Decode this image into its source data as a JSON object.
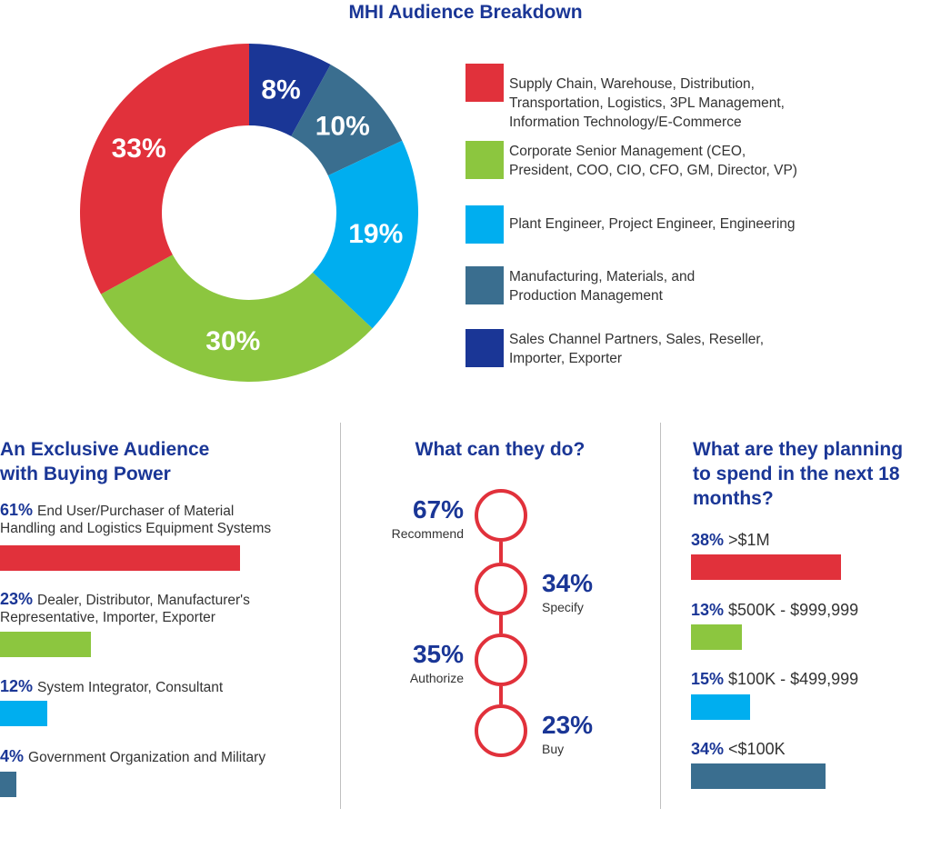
{
  "title": "MHI Audience Breakdown",
  "chart_data": [
    {
      "type": "pie",
      "title": "MHI Audience Breakdown",
      "categories": [
        "Supply Chain, Warehouse, Distribution, Transportation, Logistics, 3PL Management, Information Technology/E-Commerce",
        "Corporate Senior Management (CEO, President, COO, CIO, CFO, GM, Director, VP)",
        "Plant Engineer, Project Engineer, Engineering",
        "Manufacturing, Materials, and Production Management",
        "Sales Channel Partners, Sales, Reseller, Importer, Exporter"
      ],
      "values": [
        33,
        30,
        19,
        10,
        8
      ],
      "value_labels": [
        "33%",
        "30%",
        "19%",
        "10%",
        "8%"
      ],
      "colors": [
        "#e1313b",
        "#8cc63f",
        "#00aeef",
        "#3a6e8f",
        "#1a3696"
      ],
      "legend": [
        {
          "text": "Supply Chain, Warehouse, Distribution,\nTransportation, Logistics, 3PL Management,\nInformation Technology/E-Commerce",
          "color": "#e1313b"
        },
        {
          "text": "Corporate Senior Management (CEO,\nPresident, COO, CIO, CFO, GM, Director, VP)",
          "color": "#8cc63f"
        },
        {
          "text": "Plant Engineer, Project Engineer, Engineering",
          "color": "#00aeef"
        },
        {
          "text": "Manufacturing, Materials, and\nProduction Management",
          "color": "#3a6e8f"
        },
        {
          "text": "Sales Channel Partners, Sales, Reseller,\nImporter, Exporter",
          "color": "#1a3696"
        }
      ],
      "legend_position": "right"
    },
    {
      "type": "bar",
      "title": "An Exclusive Audience\nwith Buying Power",
      "categories": [
        "End User/Purchaser of Material Handling and Logistics Equipment Systems",
        "Dealer, Distributor, Manufacturer's Representative, Importer, Exporter",
        "System Integrator, Consultant",
        "Government Organization and Military"
      ],
      "values": [
        61,
        23,
        12,
        4
      ],
      "colors": [
        "#e1313b",
        "#8cc63f",
        "#00aeef",
        "#3a6e8f"
      ],
      "items": [
        {
          "pct": "61%",
          "text": "End User/Purchaser of Material\nHandling and Logistics Equipment Systems"
        },
        {
          "pct": "23%",
          "text": "Dealer, Distributor, Manufacturer's\nRepresentative, Importer, Exporter"
        },
        {
          "pct": "12%",
          "text": "System Integrator, Consultant"
        },
        {
          "pct": "4%",
          "text": "Government Organization and Military"
        }
      ]
    },
    {
      "type": "bar",
      "title": "What can they do?",
      "categories": [
        "Recommend",
        "Specify",
        "Authorize",
        "Buy"
      ],
      "values": [
        67,
        34,
        35,
        23
      ],
      "value_labels": [
        "67%",
        "34%",
        "35%",
        "23%"
      ]
    },
    {
      "type": "bar",
      "title": "What are they planning\nto spend in the next 18\nmonths?",
      "categories": [
        ">$1M",
        "$500K - $999,999",
        "$100K - $499,999",
        "<$100K"
      ],
      "values": [
        38,
        13,
        15,
        34
      ],
      "value_labels": [
        "38%",
        "13%",
        "15%",
        "34%"
      ],
      "colors": [
        "#e1313b",
        "#8cc63f",
        "#00aeef",
        "#3a6e8f"
      ]
    }
  ]
}
